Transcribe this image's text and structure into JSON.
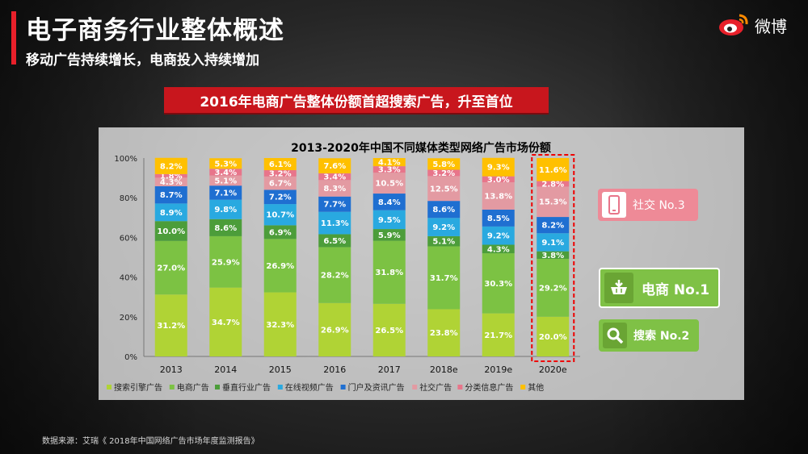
{
  "header": {
    "title": "电子商务行业整体概述",
    "subtitle": "移动广告持续增长，电商投入持续增加",
    "brand": "微博",
    "brand_icon": "weibo-logo-icon"
  },
  "banner": {
    "text": "2016年电商广告整体份额首超搜索广告，升至首位"
  },
  "callouts": {
    "social": {
      "label": "社交 No.3",
      "icon": "phone-icon"
    },
    "ecommerce": {
      "label": "电商 No.1",
      "icon": "shopping-cart-icon"
    },
    "search": {
      "label": "搜索 No.2",
      "icon": "magnifier-icon"
    }
  },
  "source": "数据来源：艾瑞《 2018年中国网络广告市场年度监测报告》",
  "chart_data": {
    "type": "bar",
    "stacked": true,
    "title": "2013-2020年中国不同媒体类型网络广告市场份额",
    "categories": [
      "2013",
      "2014",
      "2015",
      "2016",
      "2017",
      "2018e",
      "2019e",
      "2020e"
    ],
    "y_ticks": [
      "0%",
      "20%",
      "40%",
      "60%",
      "80%",
      "100%"
    ],
    "ylim": [
      0,
      100
    ],
    "highlight_category": "2020e",
    "series": [
      {
        "name": "搜索引擎广告",
        "color": "#b0d335",
        "values": [
          31.2,
          34.7,
          32.3,
          26.9,
          26.5,
          23.8,
          21.7,
          20.0
        ],
        "labels": [
          "31.2%",
          "34.7%",
          "32.3%",
          "26.9%",
          "26.5%",
          "23.8%",
          "21.7%",
          "20.0%"
        ]
      },
      {
        "name": "电商广告",
        "color": "#7cc243",
        "values": [
          27.0,
          25.9,
          26.9,
          28.2,
          31.8,
          31.7,
          30.3,
          29.2
        ],
        "labels": [
          "27.0%",
          "25.9%",
          "26.9%",
          "28.2%",
          "31.8%",
          "31.7%",
          "30.3%",
          "29.2%"
        ]
      },
      {
        "name": "垂直行业广告",
        "color": "#4c9d3a",
        "values": [
          10.0,
          8.6,
          6.9,
          6.5,
          5.9,
          5.1,
          4.3,
          3.8
        ],
        "labels": [
          "10.0%",
          "8.6%",
          "6.9%",
          "6.5%",
          "5.9%",
          "5.1%",
          "4.3%",
          "3.8%"
        ]
      },
      {
        "name": "在线视频广告",
        "color": "#29a9e0",
        "values": [
          8.9,
          9.8,
          10.7,
          11.3,
          9.5,
          9.2,
          9.2,
          9.1
        ],
        "labels": [
          "8.9%",
          "9.8%",
          "10.7%",
          "11.3%",
          "9.5%",
          "9.2%",
          "9.2%",
          "9.1%"
        ]
      },
      {
        "name": "门户及资讯广告",
        "color": "#1f6fd1",
        "values": [
          8.7,
          7.1,
          7.2,
          7.7,
          8.4,
          8.6,
          8.5,
          8.2
        ],
        "labels": [
          "8.7%",
          "7.1%",
          "7.2%",
          "7.7%",
          "8.4%",
          "8.6%",
          "8.5%",
          "8.2%"
        ]
      },
      {
        "name": "社交广告",
        "color": "#e39aa2",
        "values": [
          4.3,
          5.1,
          6.7,
          8.3,
          10.5,
          12.5,
          13.8,
          15.3
        ],
        "labels": [
          "4.3%",
          "5.1%",
          "6.7%",
          "8.3%",
          "10.5%",
          "12.5%",
          "13.8%",
          "15.3%"
        ]
      },
      {
        "name": "分类信息广告",
        "color": "#e8758a",
        "values": [
          1.8,
          3.4,
          3.2,
          3.4,
          3.3,
          3.2,
          3.0,
          2.8
        ],
        "labels": [
          "1.8%",
          "3.4%",
          "3.2%",
          "3.4%",
          "3.3%",
          "3.2%",
          "3.0%",
          "2.8%"
        ]
      },
      {
        "name": "其他",
        "color": "#ffc000",
        "values": [
          8.2,
          5.3,
          6.1,
          7.6,
          4.1,
          5.8,
          9.3,
          11.6
        ],
        "labels": [
          "8.2%",
          "5.3%",
          "6.1%",
          "7.6%",
          "4.1%",
          "5.8%",
          "9.3%",
          "11.6%"
        ]
      }
    ]
  }
}
